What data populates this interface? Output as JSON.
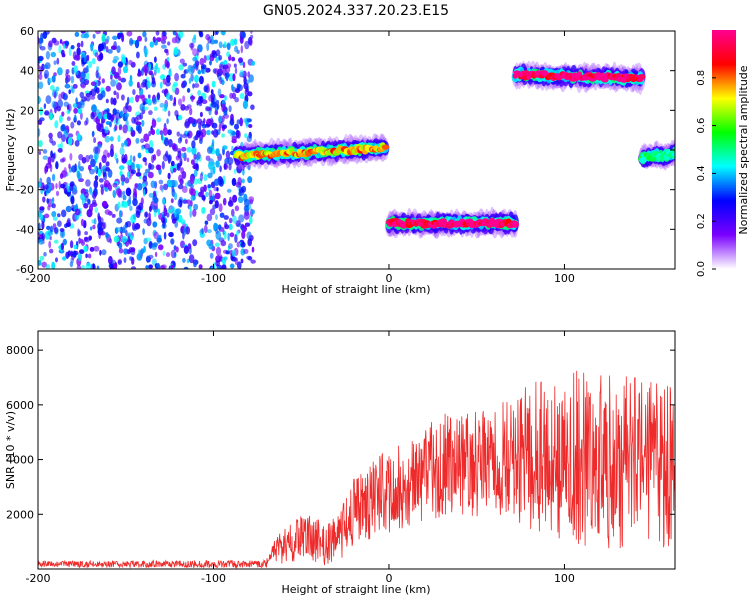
{
  "title": "GN05.2024.337.20.23.E15",
  "chart_data": [
    {
      "type": "heatmap",
      "xlabel": "Height of straight line (km)",
      "ylabel": "Frequency (Hz)",
      "xlim": [
        -200,
        163
      ],
      "ylim": [
        -60,
        60
      ],
      "x_ticks": [
        -200,
        -100,
        0,
        100
      ],
      "y_ticks": [
        -60,
        -40,
        -20,
        0,
        20,
        40,
        60
      ],
      "grid": false,
      "noise_band": {
        "x_range": [
          -200,
          -77
        ],
        "freq_range": [
          -60,
          60
        ],
        "typical_amplitude": 0.3
      },
      "segments": [
        {
          "x_start": -87,
          "x_end": -2,
          "freq_start": -3,
          "freq_end": 1,
          "peak_amplitude": 0.75
        },
        {
          "x_start": 0,
          "x_end": 72,
          "freq_start": -37,
          "freq_end": -37,
          "peak_amplitude": 1.0
        },
        {
          "x_start": 72,
          "x_end": 144,
          "freq_start": 38,
          "freq_end": 36,
          "peak_amplitude": 1.0
        },
        {
          "x_start": 144,
          "x_end": 163,
          "freq_start": -4,
          "freq_end": -2,
          "peak_amplitude": 0.5
        }
      ],
      "colorbar": {
        "label": "Normalized spectral amplitude",
        "range": [
          0.0,
          1.0
        ],
        "ticks": [
          0.0,
          0.2,
          0.4,
          0.6,
          0.8
        ],
        "colors": [
          "#ffffff",
          "#7a00ff",
          "#0000ff",
          "#00ffff",
          "#00ff00",
          "#ffff00",
          "#ff0000",
          "#ff0090"
        ]
      }
    },
    {
      "type": "line",
      "xlabel": "Height of straight line (km)",
      "ylabel": "SNR (10 * v/v)",
      "xlim": [
        -200,
        163
      ],
      "ylim": [
        0,
        8700
      ],
      "x_ticks": [
        -200,
        -100,
        0,
        100
      ],
      "y_ticks": [
        2000,
        4000,
        6000,
        8000
      ],
      "grid": false,
      "color": "#ee2a2a",
      "envelope": [
        {
          "x": -200,
          "mean": 180,
          "amp": 120
        },
        {
          "x": -70,
          "mean": 180,
          "amp": 140
        },
        {
          "x": -65,
          "mean": 700,
          "amp": 500
        },
        {
          "x": -50,
          "mean": 1100,
          "amp": 900
        },
        {
          "x": -30,
          "mean": 1000,
          "amp": 900
        },
        {
          "x": -20,
          "mean": 2200,
          "amp": 1300
        },
        {
          "x": 0,
          "mean": 2800,
          "amp": 1600
        },
        {
          "x": 30,
          "mean": 3800,
          "amp": 1900
        },
        {
          "x": 60,
          "mean": 3900,
          "amp": 2000
        },
        {
          "x": 90,
          "mean": 4200,
          "amp": 3000
        },
        {
          "x": 120,
          "mean": 4000,
          "amp": 3300
        },
        {
          "x": 163,
          "mean": 3800,
          "amp": 3000
        }
      ]
    }
  ]
}
